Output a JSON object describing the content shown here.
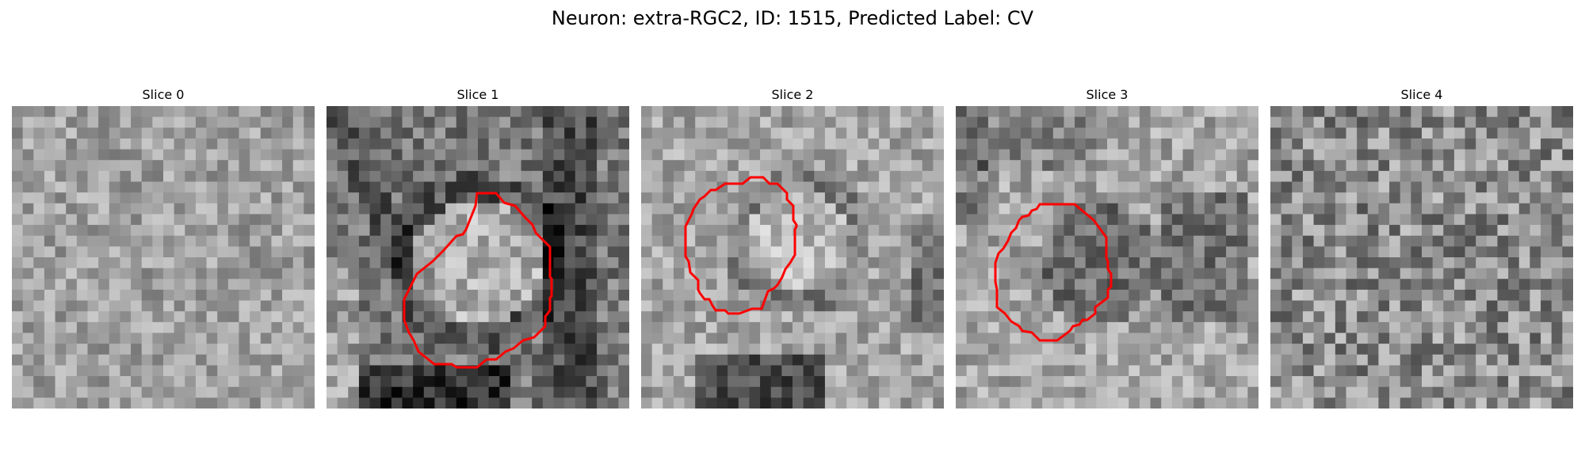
{
  "figure": {
    "title": "Neuron: extra-RGC2, ID: 1515, Predicted Label: CV"
  },
  "panels": [
    {
      "title": "Slice 0",
      "has_outline": false
    },
    {
      "title": "Slice 1",
      "has_outline": true
    },
    {
      "title": "Slice 2",
      "has_outline": true
    },
    {
      "title": "Slice 3",
      "has_outline": true
    },
    {
      "title": "Slice 4",
      "has_outline": false
    }
  ],
  "colors": {
    "outline": "#ff0000",
    "background": "#ffffff",
    "colormap": "grayscale"
  }
}
